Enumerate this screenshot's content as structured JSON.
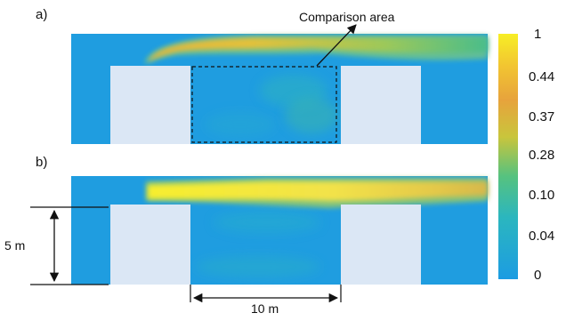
{
  "panels": [
    {
      "label": "a)"
    },
    {
      "label": "b)"
    }
  ],
  "annotation": {
    "text": "Comparison area"
  },
  "dimensions": {
    "height_label": "5 m",
    "width_label": "10 m"
  },
  "colorbar": {
    "ticks": [
      "1",
      "0.44",
      "0.37",
      "0.28",
      "0.10",
      "0.04",
      "0"
    ],
    "colors": [
      "#f5ec2a",
      "#e2bb2c",
      "#e8a33a",
      "#c7c83a",
      "#45c187",
      "#27b4c4",
      "#1e9be0"
    ]
  },
  "colors": {
    "background_field": "#1f9de0",
    "obstacle": "#dbe7f5",
    "plume_core": "#f3ec3a",
    "plume_edge": "#6cc28b"
  }
}
